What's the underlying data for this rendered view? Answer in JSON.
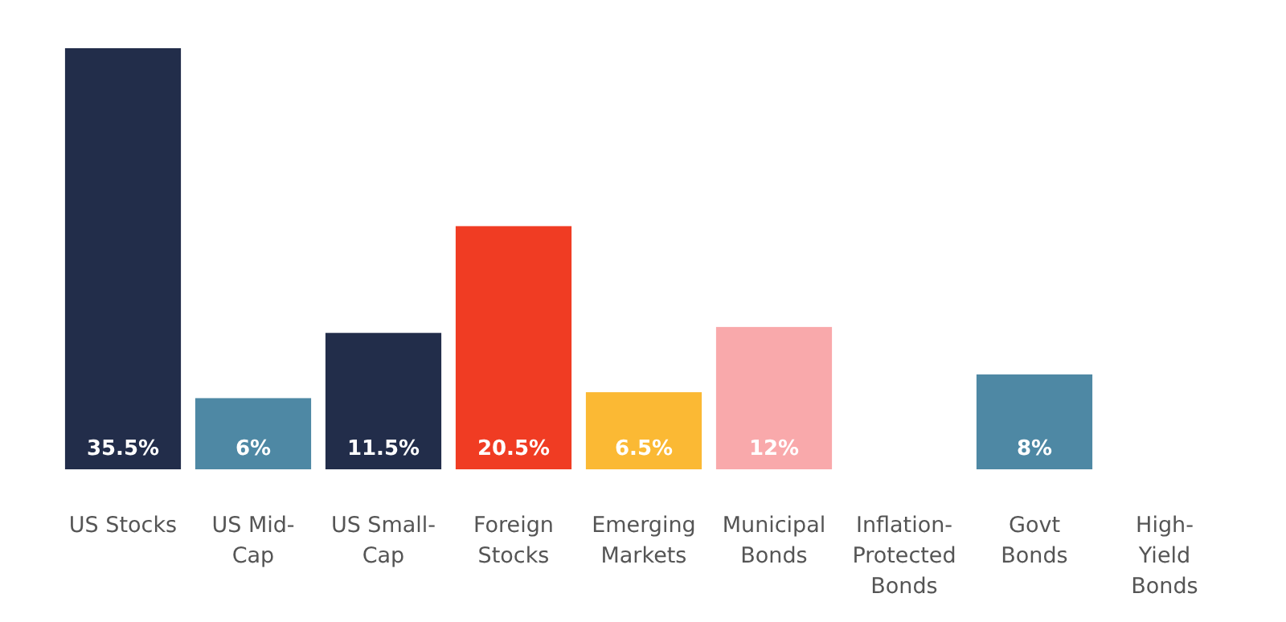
{
  "chart_data": {
    "type": "bar",
    "categories": [
      "US Stocks",
      "US Mid-Cap",
      "US Small-Cap",
      "Foreign Stocks",
      "Emerging Markets",
      "Municipal Bonds",
      "Inflation-Protected Bonds",
      "Govt Bonds",
      "High-Yield Bonds"
    ],
    "values": [
      35.5,
      6,
      11.5,
      20.5,
      6.5,
      12,
      null,
      8,
      null
    ],
    "colors": [
      "#222d4a",
      "#4e88a4",
      "#222d4a",
      "#f03c23",
      "#fbb934",
      "#f9a9ab",
      null,
      "#4e88a4",
      null
    ],
    "value_labels": [
      "35.5%",
      "6%",
      "11.5%",
      "20.5%",
      "6.5%",
      "12%",
      null,
      "8%",
      null
    ]
  }
}
